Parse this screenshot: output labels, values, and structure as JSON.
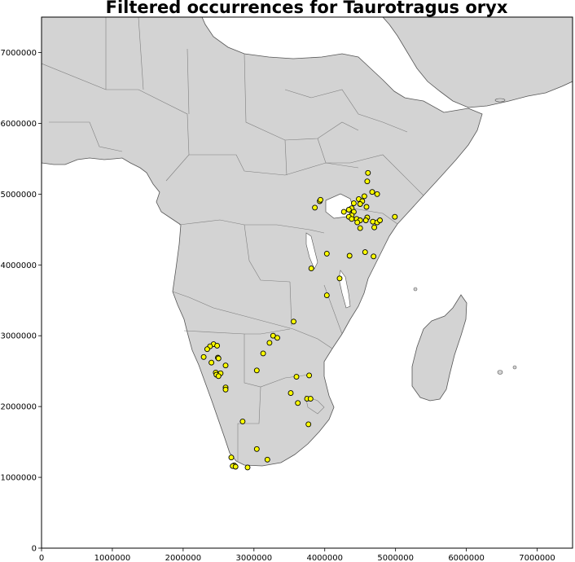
{
  "title": "Filtered occurrences for Taurotragus oryx",
  "colors": {
    "ocean": "#ffffff",
    "land": "#d3d3d3",
    "border": "#808080",
    "point_fill": "#ffff00",
    "point_edge": "#000000"
  },
  "chart_data": {
    "type": "scatter",
    "title": "Filtered occurrences for Taurotragus oryx",
    "xlim": [
      0,
      7500000
    ],
    "ylim": [
      0,
      7500000
    ],
    "x_ticks": [
      0,
      1000000,
      2000000,
      3000000,
      4000000,
      5000000,
      6000000,
      7000000
    ],
    "y_ticks": [
      0,
      1000000,
      2000000,
      3000000,
      4000000,
      5000000,
      6000000,
      7000000
    ],
    "x_tick_labels": [
      "0",
      "1000000",
      "2000000",
      "3000000",
      "4000000",
      "5000000",
      "6000000",
      "7000000"
    ],
    "y_tick_labels": [
      "0",
      "1000000",
      "2000000",
      "3000000",
      "4000000",
      "5000000",
      "6000000",
      "7000000"
    ],
    "grid": false,
    "points": [
      [
        4610000,
        5300000
      ],
      [
        4600000,
        5180000
      ],
      [
        4670000,
        5030000
      ],
      [
        4740000,
        5000000
      ],
      [
        4560000,
        4970000
      ],
      [
        4480000,
        4930000
      ],
      [
        4530000,
        4900000
      ],
      [
        4410000,
        4870000
      ],
      [
        4500000,
        4860000
      ],
      [
        4590000,
        4820000
      ],
      [
        4380000,
        4800000
      ],
      [
        4340000,
        4780000
      ],
      [
        4410000,
        4750000
      ],
      [
        4270000,
        4750000
      ],
      [
        4380000,
        4700000
      ],
      [
        4340000,
        4680000
      ],
      [
        4380000,
        4650000
      ],
      [
        4450000,
        4650000
      ],
      [
        4500000,
        4630000
      ],
      [
        4460000,
        4600000
      ],
      [
        4600000,
        4670000
      ],
      [
        4580000,
        4630000
      ],
      [
        4680000,
        4610000
      ],
      [
        4740000,
        4600000
      ],
      [
        4780000,
        4630000
      ],
      [
        4990000,
        4680000
      ],
      [
        4700000,
        4530000
      ],
      [
        4500000,
        4520000
      ],
      [
        3930000,
        4900000
      ],
      [
        3940000,
        4920000
      ],
      [
        3860000,
        4810000
      ],
      [
        4030000,
        4160000
      ],
      [
        4350000,
        4130000
      ],
      [
        4570000,
        4180000
      ],
      [
        4690000,
        4120000
      ],
      [
        3810000,
        3950000
      ],
      [
        4210000,
        3810000
      ],
      [
        4030000,
        3570000
      ],
      [
        3560000,
        3200000
      ],
      [
        3270000,
        3000000
      ],
      [
        3330000,
        2970000
      ],
      [
        3220000,
        2900000
      ],
      [
        3130000,
        2750000
      ],
      [
        3040000,
        2510000
      ],
      [
        3600000,
        2420000
      ],
      [
        3780000,
        2440000
      ],
      [
        3520000,
        2190000
      ],
      [
        3620000,
        2050000
      ],
      [
        3750000,
        2110000
      ],
      [
        3800000,
        2110000
      ],
      [
        3770000,
        1750000
      ],
      [
        2840000,
        1790000
      ],
      [
        2430000,
        2880000
      ],
      [
        2480000,
        2860000
      ],
      [
        2380000,
        2850000
      ],
      [
        2340000,
        2810000
      ],
      [
        2290000,
        2700000
      ],
      [
        2490000,
        2690000
      ],
      [
        2500000,
        2680000
      ],
      [
        2400000,
        2620000
      ],
      [
        2600000,
        2580000
      ],
      [
        2460000,
        2480000
      ],
      [
        2530000,
        2470000
      ],
      [
        2470000,
        2450000
      ],
      [
        2500000,
        2430000
      ],
      [
        2600000,
        2270000
      ],
      [
        2600000,
        2240000
      ],
      [
        3040000,
        1400000
      ],
      [
        2680000,
        1280000
      ],
      [
        3190000,
        1250000
      ],
      [
        2720000,
        1170000
      ],
      [
        2700000,
        1160000
      ],
      [
        2740000,
        1150000
      ],
      [
        2910000,
        1140000
      ]
    ]
  },
  "land_features": [
    "Africa",
    "Arabian Peninsula",
    "Madagascar",
    "Lake Victoria",
    "Lake Tanganyika",
    "Lake Malawi"
  ]
}
